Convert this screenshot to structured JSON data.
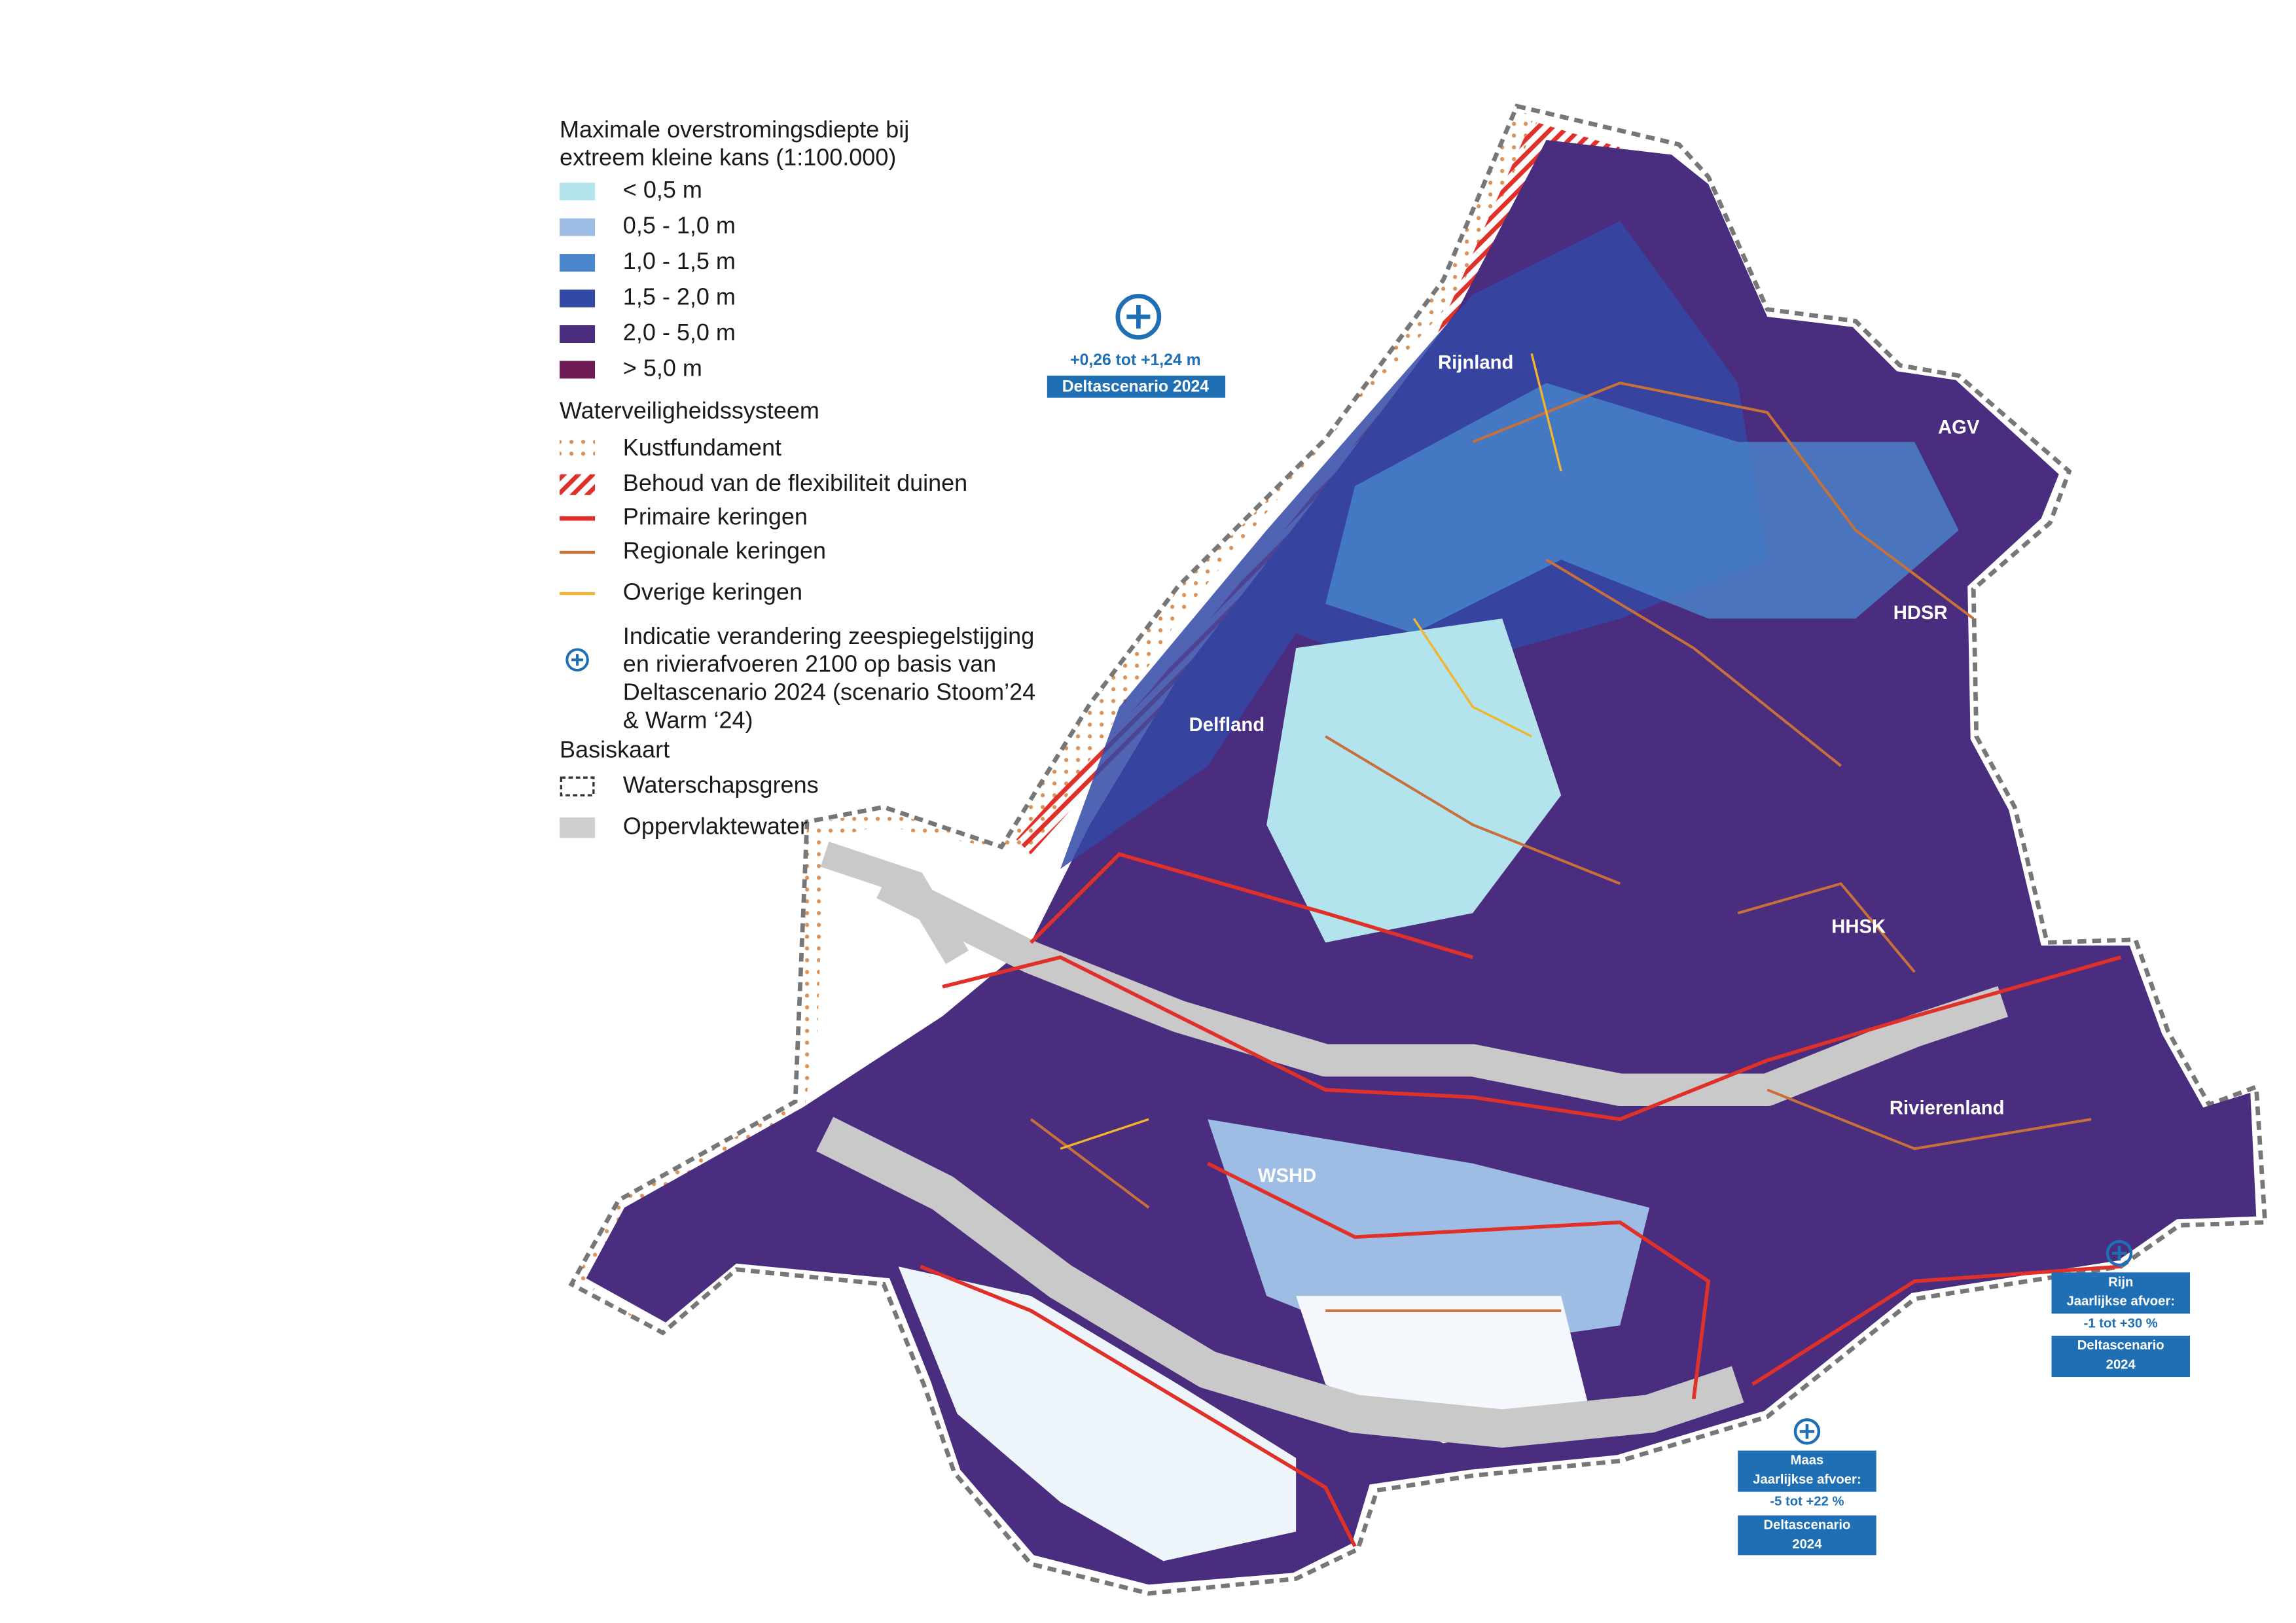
{
  "legend": {
    "title_lines": [
      "Maximale overstromingsdiepte bij",
      "extreem kleine kans (1:100.000)"
    ],
    "depth_classes": [
      {
        "label": "< 0,5 m",
        "color": "#b3e3ec"
      },
      {
        "label": "0,5  - 1,0 m",
        "color": "#9dbde5"
      },
      {
        "label": "1,0  - 1,5 m",
        "color": "#4a86cc"
      },
      {
        "label": "1,5  - 2,0 m",
        "color": "#3249a6"
      },
      {
        "label": "2,0  - 5,0 m",
        "color": "#4a2d7e"
      },
      {
        "label": "> 5,0 m",
        "color": "#6e1a55"
      }
    ],
    "system_title": "Waterveiligheidssysteem",
    "system_items": [
      "Kustfundament",
      "Behoud van de flexibiliteit duinen",
      "Primaire keringen",
      "Regionale keringen",
      "Overige keringen"
    ],
    "indication_lines": [
      "Indicatie verandering zeespiegelstijging",
      "en rivierafvoeren 2100 op basis van",
      "Deltascenario 2024 (scenario Stoom’24",
      "& Warm ‘24)"
    ],
    "base_title": "Basiskaart",
    "base_items": [
      "Waterschapsgrens",
      "Oppervlaktewater"
    ]
  },
  "regions": [
    "Rijnland",
    "AGV",
    "HDSR",
    "Delfland",
    "HHSK",
    "Rivierenland",
    "WSHD"
  ],
  "annotations": {
    "sea": {
      "change": "+0,26 tot +1,24 m",
      "source": "Deltascenario 2024"
    },
    "rijn": {
      "name": "Rijn",
      "label": "Jaarlijkse afvoer:",
      "change": "-1 tot +30 %",
      "source_lines": [
        "Deltascenario",
        "2024"
      ]
    },
    "maas": {
      "name": "Maas",
      "label": "Jaarlijkse afvoer:",
      "change": "-5 tot +22 %",
      "source_lines": [
        "Deltascenario",
        "2024"
      ]
    }
  }
}
